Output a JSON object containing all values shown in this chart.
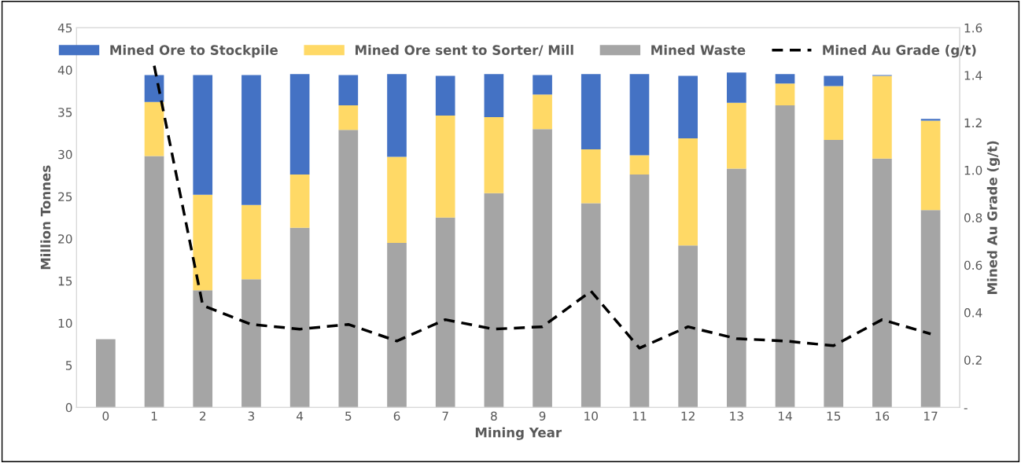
{
  "chart_data": {
    "type": "bar",
    "stacked": true,
    "xlabel": "Mining Year",
    "ylabel": "Million Tonnes",
    "y2label": "Mined Au Grade (g/t)",
    "categories": [
      "0",
      "1",
      "2",
      "3",
      "4",
      "5",
      "6",
      "7",
      "8",
      "9",
      "10",
      "11",
      "12",
      "13",
      "14",
      "15",
      "16",
      "17"
    ],
    "series": [
      {
        "name": "Mined Waste",
        "color": "#a5a5a5",
        "values": [
          8.1,
          29.8,
          13.9,
          15.2,
          21.3,
          32.9,
          19.5,
          22.5,
          25.4,
          33.0,
          24.2,
          27.6,
          19.2,
          28.3,
          35.8,
          31.7,
          29.5,
          23.4
        ]
      },
      {
        "name": "Mined Ore sent to Sorter/ Mill",
        "color": "#ffd966",
        "values": [
          0,
          6.4,
          11.3,
          8.8,
          6.3,
          2.9,
          10.2,
          12.1,
          9.0,
          4.1,
          6.4,
          2.3,
          12.7,
          7.8,
          2.6,
          6.4,
          9.8,
          10.6
        ]
      },
      {
        "name": "Mined Ore to Stockpile",
        "color": "#4472c4",
        "values": [
          0,
          3.2,
          14.2,
          15.4,
          11.9,
          3.6,
          9.8,
          4.7,
          5.1,
          2.3,
          8.9,
          9.6,
          7.4,
          3.6,
          1.1,
          1.2,
          0.1,
          0.2
        ]
      },
      {
        "name": "Mined Au Grade (g/t)",
        "type": "line",
        "axis": "y2",
        "color": "#000000",
        "line_style": "dashed",
        "marker": "none",
        "values": [
          null,
          1.44,
          0.43,
          0.35,
          0.33,
          0.35,
          0.28,
          0.37,
          0.33,
          0.34,
          0.49,
          0.25,
          0.34,
          0.29,
          0.28,
          0.26,
          0.37,
          0.31
        ]
      }
    ],
    "ylim": [
      0,
      45
    ],
    "yticks": [
      0,
      5,
      10,
      15,
      20,
      25,
      30,
      35,
      40,
      45
    ],
    "y2lim": [
      0,
      1.6
    ],
    "y2ticks": [
      {
        "value": 0,
        "label": "-"
      },
      {
        "value": 0.2,
        "label": "0.2"
      },
      {
        "value": 0.4,
        "label": "0.4"
      },
      {
        "value": 0.6,
        "label": "0.6"
      },
      {
        "value": 0.8,
        "label": "0.8"
      },
      {
        "value": 1.0,
        "label": "1.0"
      },
      {
        "value": 1.2,
        "label": "1.2"
      },
      {
        "value": 1.4,
        "label": "1.4"
      },
      {
        "value": 1.6,
        "label": "1.6"
      }
    ],
    "legend": "top",
    "grid": false
  }
}
